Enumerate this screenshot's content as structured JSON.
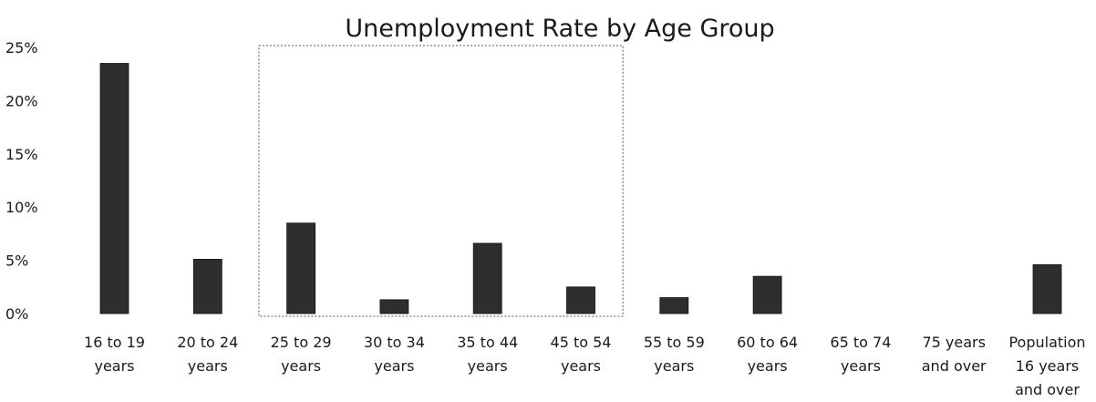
{
  "chart_data": {
    "type": "bar",
    "title": "Unemployment Rate by Age Group",
    "xlabel": "",
    "ylabel": "",
    "ylim": [
      0,
      25
    ],
    "y_ticks": [
      "0%",
      "5%",
      "10%",
      "15%",
      "20%",
      "25%"
    ],
    "y_tick_values": [
      0,
      5,
      10,
      15,
      20,
      25
    ],
    "categories": [
      "16 to 19 years",
      "20 to 24 years",
      "25 to 29 years",
      "30 to 34 years",
      "35 to 44 years",
      "45 to 54 years",
      "55 to 59 years",
      "60 to 64 years",
      "65 to 74 years",
      "75 years and over",
      "Population 16 years and over"
    ],
    "category_lines": [
      [
        "16 to 19",
        "years"
      ],
      [
        "20 to 24",
        "years"
      ],
      [
        "25 to 29",
        "years"
      ],
      [
        "30 to 34",
        "years"
      ],
      [
        "35 to 44",
        "years"
      ],
      [
        "45 to 54",
        "years"
      ],
      [
        "55 to 59",
        "years"
      ],
      [
        "60 to 64",
        "years"
      ],
      [
        "65 to 74",
        "years"
      ],
      [
        "75 years",
        "and over"
      ],
      [
        "Population",
        "16 years",
        "and over"
      ]
    ],
    "values": [
      23.5,
      5.1,
      8.5,
      1.3,
      6.6,
      2.5,
      1.5,
      3.5,
      0,
      0,
      4.6
    ],
    "grid": false,
    "legend": "none",
    "bar_color": "#2e2e2e",
    "annotation_box": {
      "from_category": "25 to 29 years",
      "to_category": "45 to 54 years"
    }
  }
}
